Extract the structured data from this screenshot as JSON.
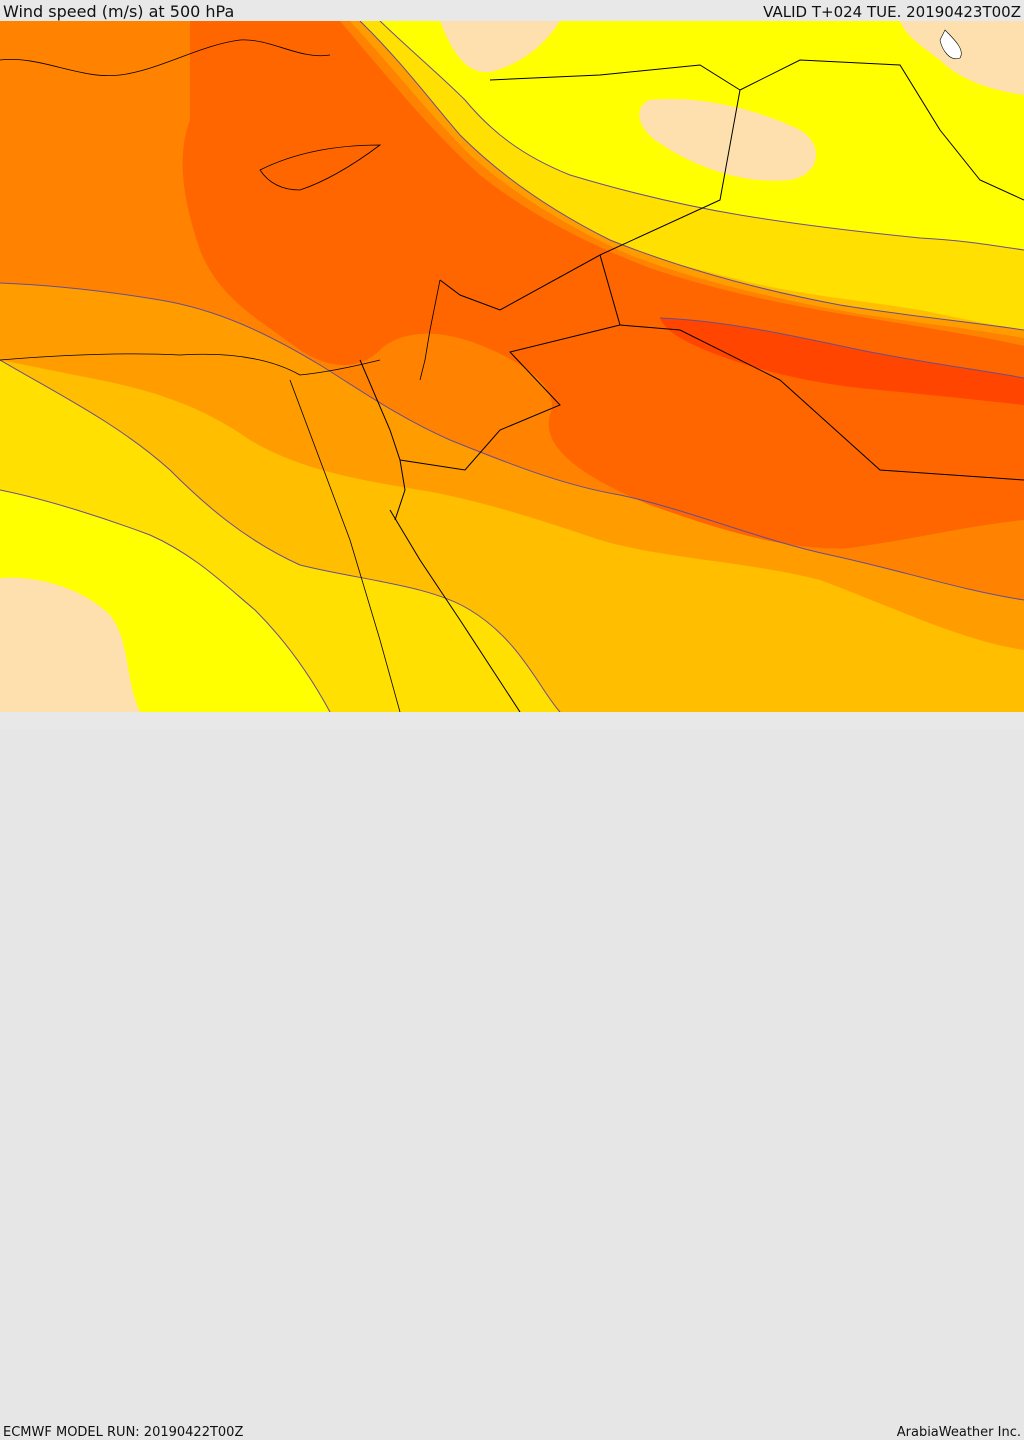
{
  "header": {
    "title": "Wind speed (m/s) at 500 hPa",
    "valid": "VALID T+024 TUE. 20190423T00Z"
  },
  "footer": {
    "model_run": "ECMWF MODEL RUN: 20190422T00Z",
    "credit": "ArabiaWeather Inc."
  },
  "map": {
    "colors": {
      "calm": "#fde0ad",
      "band1": "#ffff00",
      "band2": "#ffe000",
      "band3": "#ffbe00",
      "band4": "#ff9d00",
      "band5": "#ff8200",
      "band6": "#ff6600",
      "band7": "#ff4500",
      "contour": "#6a4d8e",
      "border": "#000000",
      "water": "#ffffff"
    }
  }
}
